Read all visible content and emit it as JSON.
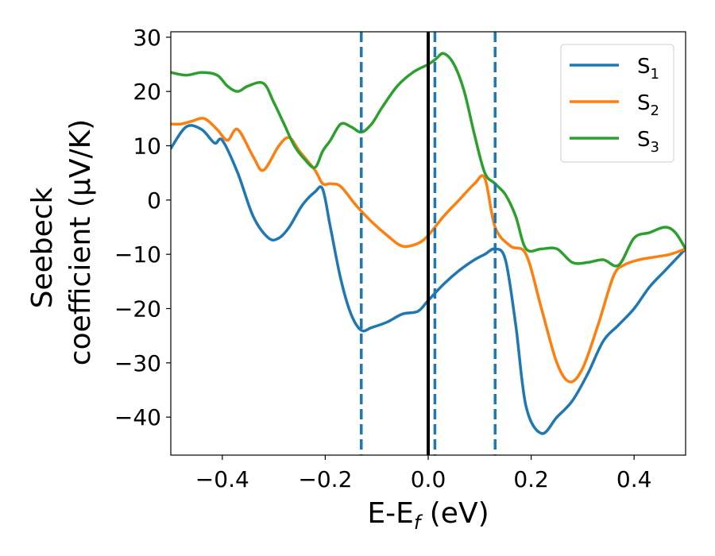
{
  "chart_data": {
    "type": "line",
    "xlabel": {
      "main": "E-E",
      "sub": "f",
      "unit": " (eV)"
    },
    "ylabel": {
      "line1": "Seebeck",
      "line2": "coefficient  (μV/K)"
    },
    "xlim": [
      -0.5,
      0.5
    ],
    "ylim": [
      -47,
      31
    ],
    "xticks": [
      -0.4,
      -0.2,
      0.0,
      0.2,
      0.4
    ],
    "xtick_labels": [
      "−0.4",
      "−0.2",
      "0.0",
      "0.2",
      "0.4"
    ],
    "yticks": [
      30,
      20,
      10,
      0,
      -10,
      -20,
      -30,
      -40
    ],
    "ytick_labels": [
      "30",
      "20",
      "10",
      "0",
      "−10",
      "−20",
      "−30",
      "−40"
    ],
    "grid": false,
    "legend": {
      "placement": "top-right"
    },
    "vlines": [
      {
        "x": 0.0,
        "color": "#000000",
        "style": "solid"
      },
      {
        "x": -0.13,
        "color": "#1f77b4",
        "style": "dashed"
      },
      {
        "x": 0.013,
        "color": "#1f77b4",
        "style": "dashed"
      },
      {
        "x": 0.13,
        "color": "#1f77b4",
        "style": "dashed"
      }
    ],
    "series": [
      {
        "name": "S",
        "sub": "1",
        "color": "#1f77b4",
        "x": [
          -0.5,
          -0.47,
          -0.44,
          -0.415,
          -0.4,
          -0.37,
          -0.34,
          -0.31,
          -0.29,
          -0.27,
          -0.245,
          -0.22,
          -0.205,
          -0.19,
          -0.17,
          -0.15,
          -0.13,
          -0.11,
          -0.08,
          -0.05,
          -0.02,
          0.0,
          0.03,
          0.06,
          0.09,
          0.11,
          0.13,
          0.15,
          0.17,
          0.19,
          0.22,
          0.25,
          0.28,
          0.31,
          0.34,
          0.37,
          0.4,
          0.43,
          0.46,
          0.5
        ],
        "y": [
          9.5,
          13.5,
          13.0,
          10.5,
          11.0,
          5.0,
          -3.0,
          -7.0,
          -7.0,
          -5.0,
          -1.0,
          1.5,
          2.0,
          -5.0,
          -14.5,
          -21.0,
          -24.0,
          -23.5,
          -22.5,
          -21.0,
          -20.5,
          -18.5,
          -15.5,
          -13.0,
          -11.0,
          -10.0,
          -9.0,
          -11.0,
          -23.0,
          -38.0,
          -43.0,
          -40.0,
          -37.0,
          -32.0,
          -26.0,
          -23.0,
          -20.0,
          -16.0,
          -13.0,
          -9.0
        ]
      },
      {
        "name": "S",
        "sub": "2",
        "color": "#ff7f0e",
        "x": [
          -0.5,
          -0.48,
          -0.46,
          -0.435,
          -0.41,
          -0.39,
          -0.37,
          -0.34,
          -0.32,
          -0.29,
          -0.27,
          -0.25,
          -0.22,
          -0.205,
          -0.19,
          -0.17,
          -0.14,
          -0.11,
          -0.08,
          -0.05,
          -0.02,
          0.0,
          0.03,
          0.06,
          0.09,
          0.11,
          0.13,
          0.16,
          0.19,
          0.22,
          0.25,
          0.275,
          0.3,
          0.33,
          0.36,
          0.38,
          0.41,
          0.44,
          0.47,
          0.5
        ],
        "y": [
          14.0,
          14.0,
          14.5,
          15.0,
          13.0,
          11.0,
          13.0,
          8.0,
          5.5,
          10.0,
          11.5,
          9.0,
          5.5,
          3.0,
          3.0,
          2.5,
          -1.0,
          -4.0,
          -6.5,
          -8.5,
          -8.0,
          -6.5,
          -3.0,
          0.0,
          3.0,
          4.0,
          -5.0,
          -8.5,
          -10.0,
          -20.0,
          -30.0,
          -33.5,
          -31.0,
          -23.0,
          -14.0,
          -12.0,
          -11.0,
          -10.5,
          -10.0,
          -9.0
        ]
      },
      {
        "name": "S",
        "sub": "3",
        "color": "#2ca02c",
        "x": [
          -0.5,
          -0.47,
          -0.44,
          -0.41,
          -0.39,
          -0.37,
          -0.35,
          -0.32,
          -0.3,
          -0.28,
          -0.26,
          -0.24,
          -0.22,
          -0.205,
          -0.19,
          -0.17,
          -0.15,
          -0.13,
          -0.11,
          -0.09,
          -0.06,
          -0.03,
          0.0,
          0.015,
          0.03,
          0.05,
          0.07,
          0.09,
          0.11,
          0.13,
          0.15,
          0.17,
          0.19,
          0.22,
          0.25,
          0.28,
          0.31,
          0.34,
          0.37,
          0.4,
          0.43,
          0.46,
          0.48,
          0.5
        ],
        "y": [
          23.5,
          23.0,
          23.5,
          23.0,
          21.0,
          20.0,
          21.0,
          21.5,
          18.0,
          14.0,
          10.0,
          7.5,
          6.0,
          9.0,
          11.0,
          14.0,
          13.5,
          12.5,
          14.0,
          17.0,
          21.0,
          23.5,
          25.0,
          26.0,
          27.0,
          25.0,
          20.0,
          12.0,
          5.0,
          3.0,
          1.0,
          -3.0,
          -9.0,
          -9.0,
          -9.0,
          -11.5,
          -11.5,
          -11.0,
          -12.0,
          -7.0,
          -6.0,
          -5.0,
          -6.0,
          -9.0
        ]
      }
    ]
  }
}
